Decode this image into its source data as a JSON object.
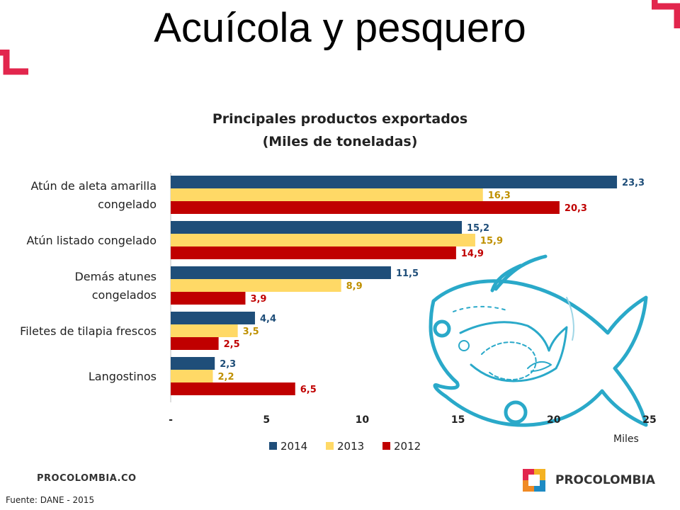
{
  "slide": {
    "title": "Acuícola y pesquero",
    "brand_left": "PROCOLOMBIA.CO",
    "brand_right": "PROCOLOMBIA",
    "source": "Fuente: DANE - 2015",
    "unit_label": "Miles"
  },
  "colors": {
    "accent": "#E2264D",
    "fish": "#2AA9C9"
  },
  "chart_data": {
    "type": "bar",
    "orientation": "horizontal",
    "title": "Principales productos exportados",
    "subtitle": "(Miles de toneladas)",
    "categories": [
      [
        "Atún de aleta  amarilla",
        "congelado"
      ],
      [
        "Atún listado congelado"
      ],
      [
        "Demás atunes",
        "congelados"
      ],
      [
        "Filetes  de tilapia frescos"
      ],
      [
        "Langostinos"
      ]
    ],
    "series": [
      {
        "name": "2014",
        "color": "#1F4E79",
        "label_color": "#1F4E79",
        "values": [
          23.3,
          15.2,
          11.5,
          4.4,
          2.3
        ],
        "labels": [
          "23,3",
          "15,2",
          "11,5",
          "4,4",
          "2,3"
        ]
      },
      {
        "name": "2013",
        "color": "#FFD966",
        "label_color": "#BF9000",
        "values": [
          16.3,
          15.9,
          8.9,
          3.5,
          2.2
        ],
        "labels": [
          "16,3",
          "15,9",
          "8,9",
          "3,5",
          "2,2"
        ]
      },
      {
        "name": "2012",
        "color": "#C00000",
        "label_color": "#C00000",
        "values": [
          20.3,
          14.9,
          3.9,
          2.5,
          6.5
        ],
        "labels": [
          "20,3",
          "14,9",
          "3,9",
          "2,5",
          "6,5"
        ]
      }
    ],
    "x_ticks": [
      "-",
      "5",
      "10",
      "15",
      "20",
      "25"
    ],
    "xlim": [
      0,
      25
    ],
    "legend": "bottom",
    "grid": false
  }
}
